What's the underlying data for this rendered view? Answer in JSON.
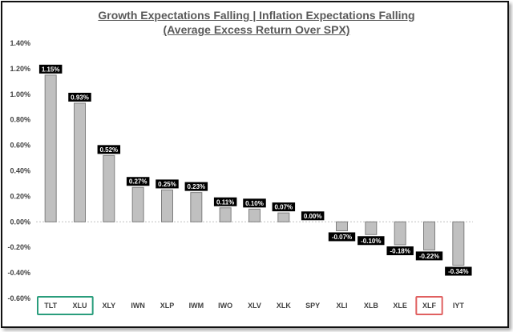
{
  "chart_data": {
    "type": "bar",
    "title": "Growth Expectations Falling | Inflation Expectations Falling",
    "subtitle": "(Average Excess Return Over SPX)",
    "xlabel": "",
    "ylabel": "",
    "ylim": [
      -0.6,
      1.4
    ],
    "yticks": [
      "1.40%",
      "1.20%",
      "1.00%",
      "0.80%",
      "0.60%",
      "0.40%",
      "0.20%",
      "0.00%",
      "-0.20%",
      "-0.40%",
      "-0.60%"
    ],
    "categories": [
      "TLT",
      "XLU",
      "XLY",
      "IWN",
      "XLP",
      "IWM",
      "IWO",
      "XLV",
      "XLK",
      "SPY",
      "XLI",
      "XLB",
      "XLE",
      "XLF",
      "IYT"
    ],
    "values": [
      1.15,
      0.93,
      0.52,
      0.27,
      0.25,
      0.23,
      0.11,
      0.1,
      0.07,
      0.0,
      -0.07,
      -0.1,
      -0.18,
      -0.22,
      -0.34
    ],
    "data_labels": [
      "1.15%",
      "0.93%",
      "0.52%",
      "0.27%",
      "0.25%",
      "0.23%",
      "0.11%",
      "0.10%",
      "0.07%",
      "0.00%",
      "-0.07%",
      "-0.10%",
      "-0.18%",
      "-0.22%",
      "-0.34%"
    ],
    "grid": false,
    "legend": "none",
    "bar_color": "#c0c0c0",
    "highlights": [
      {
        "categories": [
          "TLT",
          "XLU"
        ],
        "color": "#2a9d7c"
      },
      {
        "categories": [
          "XLF"
        ],
        "color": "#e06060"
      }
    ]
  }
}
